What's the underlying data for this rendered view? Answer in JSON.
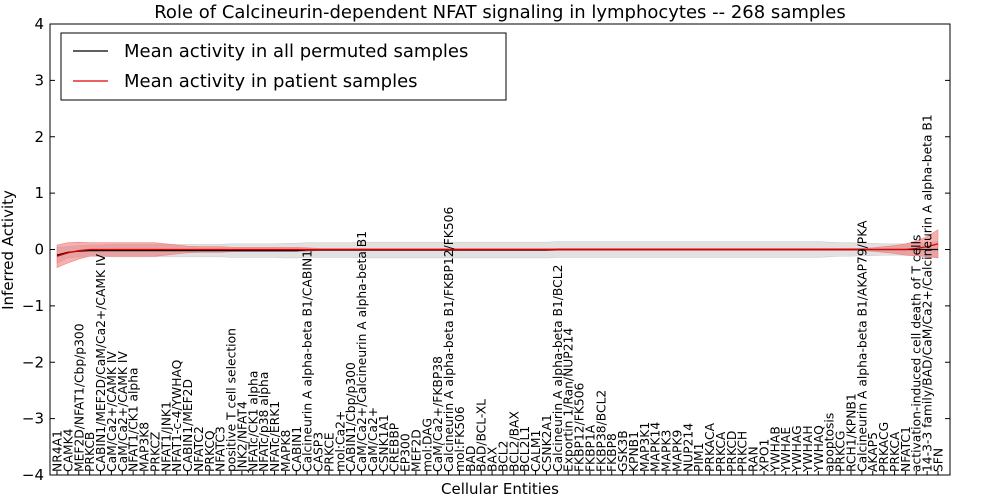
{
  "chart_data": {
    "type": "line",
    "title": "Role of Calcineurin-dependent NFAT signaling in lymphocytes -- 268 samples",
    "xlabel": "Cellular Entities",
    "ylabel": "Inferred Activity",
    "ylim": [
      -4,
      4
    ],
    "yticks": [
      "4",
      "3",
      "2",
      "1",
      "0",
      "−1",
      "−2",
      "−3",
      "−4"
    ],
    "grid": false,
    "legend_position": "top-left",
    "colors": {
      "permuted": "#000000",
      "patient": "#e00000",
      "permuted_band": "#c8c8c8",
      "patient_band": "#f07070"
    },
    "categories": [
      "NR4A1",
      "CAMK4",
      "MEF2D/NFAT1/Cbp/p300",
      "PRKCB",
      "CABIN1/MEF2D/CaM/Ca2+/CAMK IV",
      "CaM/Ca2+/CAMK IV",
      "CaM/Ca2+/CAMK IV",
      "NFAT1/CK1 alpha",
      "MAP3K8",
      "PRKCZ",
      "NFAT1/JNK1",
      "NFAT1-c-4/YWHAQ",
      "CABIN1/MEF2D",
      "NFATC2",
      "PRKCQ",
      "NFATC3",
      "positive T cell selection",
      "JNK2/NFAT4",
      "NFATc/CK1 alpha",
      "NFATc/p38 alpha",
      "NFATc/ERK1",
      "MAPK8",
      "CABIN1",
      "Calcineurin A alpha-beta B1/CABIN1",
      "CASP3",
      "PRKCE",
      "mol:Ca2+",
      "CABIN1/Cbp/p300",
      "CaM/Ca2+/Calcineurin A alpha-beta B1",
      "CaM/Ca2+",
      "CSNK1A1",
      "CREBBP",
      "EP300",
      "MEF2D",
      "mol:DAG",
      "CaM/Ca2+/FKBP38",
      "Calcineurin A alpha-beta B1/FKBP12/FK506",
      "mol:FK506",
      "BAD",
      "BAD/BCL-XL",
      "BAX",
      "BCL2",
      "BCL2/BAX",
      "BCL2L1",
      "CALM1",
      "CSNK2A1",
      "Calcineurin A alpha-beta B1/BCL2",
      "Exportin 1/Ran/NUP214",
      "FKBP12/FK506",
      "FKBP1A",
      "FKBP38/BCL2",
      "FKBP8",
      "GSK3B",
      "KPNB1",
      "MAP3K1",
      "MAPK14",
      "MAPK3",
      "MAPK9",
      "NUP214",
      "PIM1",
      "PRKACA",
      "PRKCA",
      "PRKCD",
      "PRKCH",
      "RAN",
      "XPO1",
      "YWHAB",
      "YWHAE",
      "YWHAG",
      "YWHAH",
      "YWHAQ",
      "apoptosis",
      "PRKCG",
      "RCH1/KPNB1",
      "Calcineurin A alpha-beta B1/AKAP79/PKA",
      "AKAP5",
      "PRKACG",
      "PRKCA",
      "NFATC1",
      "activation-induced cell death of T cells",
      "14-3-3 family/BAD/CaM/Ca2+/Calcineurin A alpha-beta B1",
      "SFN"
    ],
    "series": [
      {
        "name": "Mean activity in all permuted samples",
        "values": [
          -0.1,
          -0.05,
          -0.03,
          -0.02,
          -0.02,
          -0.02,
          -0.02,
          -0.02,
          -0.02,
          -0.02,
          -0.02,
          -0.02,
          -0.02,
          -0.02,
          -0.02,
          -0.02,
          -0.02,
          -0.02,
          -0.02,
          -0.02,
          -0.02,
          -0.02,
          -0.02,
          -0.01,
          -0.01,
          -0.01,
          -0.01,
          -0.01,
          -0.01,
          -0.01,
          -0.01,
          -0.01,
          -0.01,
          -0.01,
          -0.01,
          -0.01,
          -0.01,
          -0.01,
          -0.01,
          -0.01,
          -0.01,
          -0.01,
          -0.01,
          -0.01,
          -0.01,
          -0.01,
          0,
          0,
          0,
          0,
          0,
          0,
          0,
          0,
          0,
          0,
          0,
          0,
          0,
          0,
          0,
          0,
          0,
          0,
          0,
          0,
          0,
          0,
          0,
          0,
          0,
          0,
          0,
          0,
          0,
          0,
          0,
          0,
          0,
          0,
          0,
          0
        ],
        "band": [
          0.14,
          0.1,
          0.1,
          0.1,
          0.1,
          0.11,
          0.11,
          0.11,
          0.11,
          0.11,
          0.11,
          0.11,
          0.11,
          0.11,
          0.11,
          0.11,
          0.12,
          0.12,
          0.12,
          0.12,
          0.12,
          0.13,
          0.13,
          0.13,
          0.13,
          0.13,
          0.13,
          0.13,
          0.14,
          0.14,
          0.14,
          0.14,
          0.14,
          0.14,
          0.14,
          0.14,
          0.14,
          0.14,
          0.14,
          0.14,
          0.14,
          0.14,
          0.14,
          0.14,
          0.14,
          0.14,
          0.14,
          0.14,
          0.14,
          0.14,
          0.14,
          0.14,
          0.14,
          0.14,
          0.14,
          0.14,
          0.14,
          0.14,
          0.14,
          0.14,
          0.14,
          0.14,
          0.14,
          0.14,
          0.14,
          0.14,
          0.14,
          0.14,
          0.14,
          0.14,
          0.14,
          0.13,
          0.12,
          0.12,
          0.11,
          0.11,
          0.1,
          0.1,
          0.1,
          0.11,
          0.12,
          0.14
        ]
      },
      {
        "name": "Mean activity in patient samples",
        "values": [
          -0.12,
          -0.06,
          -0.02,
          0,
          0,
          0,
          0,
          0,
          0,
          0,
          0,
          0,
          0,
          0,
          0,
          0,
          0,
          0,
          0,
          0,
          0,
          0,
          0,
          0,
          0,
          0,
          0,
          0,
          0,
          0,
          0,
          0,
          0,
          0,
          0,
          0,
          0,
          0,
          0,
          0,
          0,
          0,
          0,
          0,
          0,
          0,
          0,
          0,
          0,
          0,
          0,
          0,
          0,
          0,
          0,
          0,
          0,
          0,
          0,
          0,
          0,
          0,
          0,
          0,
          0,
          0,
          0,
          0,
          0,
          0,
          0,
          0,
          0,
          0,
          0,
          0,
          0,
          0,
          0,
          0.02,
          0.05,
          0.1
        ],
        "band": [
          0.2,
          0.18,
          0.15,
          0.12,
          0.12,
          0.12,
          0.12,
          0.12,
          0.12,
          0.12,
          0.1,
          0.08,
          0.06,
          0.05,
          0.05,
          0.05,
          0.04,
          0.04,
          0.04,
          0.04,
          0.04,
          0.04,
          0.04,
          0.03,
          0.02,
          0.02,
          0.02,
          0.02,
          0.02,
          0.02,
          0.02,
          0.02,
          0.02,
          0.02,
          0.02,
          0.02,
          0.02,
          0.02,
          0.02,
          0.02,
          0.02,
          0.02,
          0.02,
          0.02,
          0.02,
          0.02,
          0.02,
          0.02,
          0.02,
          0.02,
          0.02,
          0.02,
          0.02,
          0.02,
          0.02,
          0.02,
          0.02,
          0.02,
          0.02,
          0.02,
          0.02,
          0.02,
          0.02,
          0.02,
          0.02,
          0.02,
          0.02,
          0.02,
          0.02,
          0.02,
          0.02,
          0.02,
          0.02,
          0.02,
          0.02,
          0.03,
          0.05,
          0.07,
          0.1,
          0.13,
          0.18,
          0.25
        ]
      }
    ]
  }
}
